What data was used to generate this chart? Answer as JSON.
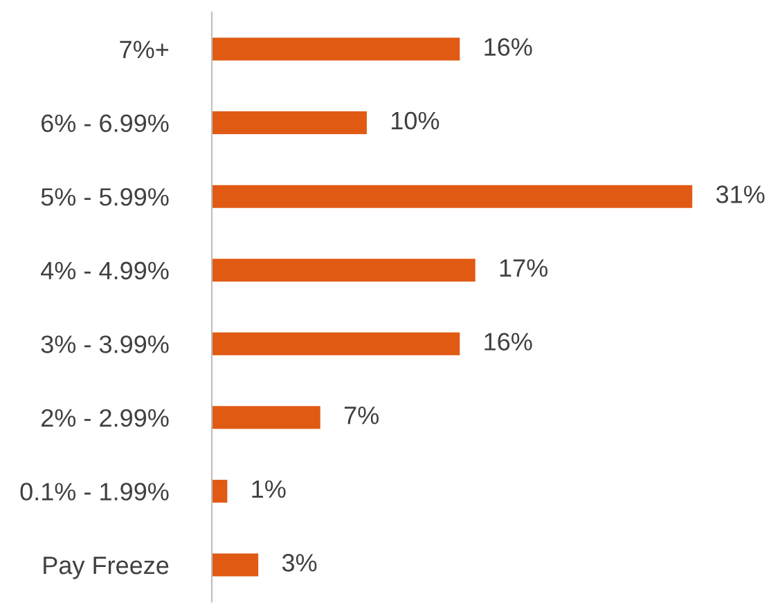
{
  "chart_data": {
    "type": "bar",
    "orientation": "horizontal",
    "categories": [
      "7%+",
      "6% - 6.99%",
      "5% - 5.99%",
      "4% - 4.99%",
      "3% - 3.99%",
      "2% - 2.99%",
      "0.1% - 1.99%",
      "Pay Freeze"
    ],
    "values": [
      16,
      10,
      31,
      17,
      16,
      7,
      1,
      3
    ],
    "value_labels": [
      "16%",
      "10%",
      "31%",
      "17%",
      "16%",
      "7%",
      "1%",
      "3%"
    ],
    "color": "#e05a14",
    "grid": false,
    "legend": false
  }
}
